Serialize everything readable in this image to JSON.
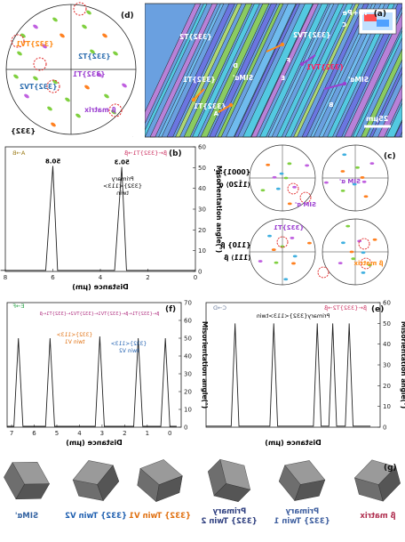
{
  "panel_labels": {
    "a": "(a)",
    "b": "(b)",
    "c": "(c)",
    "d": "(d)",
    "e": "(e)",
    "f": "(f)",
    "g": "(g)"
  },
  "map_a": {
    "title": "IQ+Pe",
    "labels": [
      "{332}TV2",
      "{332}TV1",
      "{332}T2",
      "{332}T1",
      "SIMα'",
      "SIMα'",
      "{332}T1",
      "C",
      "D",
      "E",
      "F",
      "A",
      "B"
    ],
    "scale_label": "25μm"
  },
  "pf_d": {
    "label": "{332}",
    "annotations": [
      "{332}TV1",
      "{332}T2",
      "{332}T1",
      "{332}TV2",
      "β matrix"
    ]
  },
  "pf_c": {
    "left_top_label": "{0001} α'",
    "left_bottom_label": "⟨11̄20⟩ α'",
    "right_top_label": "{110} β",
    "right_bottom_label": "⟨111⟩ β",
    "annotations": [
      "SIM α'",
      "SIM α'",
      "{332}T1",
      "β matrix"
    ]
  },
  "profile_b": {
    "series_label": "A→B",
    "legend": "β←{332}T1→β",
    "peak_values": [
      "50.8",
      "50.3"
    ],
    "annotation": [
      "Primary",
      "{332}<113>",
      "twin"
    ]
  },
  "profile_e": {
    "series_label": "C→D",
    "legend": "β←{332}T2→β",
    "annotation": "Primary{332}<113>twin"
  },
  "profile_f": {
    "series_label": "E→F",
    "legend": "β←{332}T1←β←{332}TV1←{332}TV2←{332}T1←β",
    "annotation_v1": [
      "{332}<113>",
      "twin V1"
    ],
    "annotation_v2": [
      "{332}<113>",
      "twin V2"
    ]
  },
  "axes": {
    "ylabel": "Misorientation angle(°)",
    "xlabel": "Distance (μm)"
  },
  "cubes": {
    "labels": [
      "β matrix",
      "Primary\n{332} Twin 1",
      "Primary\n{332} Twin 2",
      "{332} Twin V1",
      "{332} Twin V2",
      "SIMα'"
    ]
  },
  "colors": {
    "profile_line": "#222222",
    "map_green": "#8fd24a",
    "map_cyan": "#4fd0e0",
    "map_blue": "#6b6fe0",
    "map_magenta": "#c67bd6",
    "annot_orange": "#ff8c1a",
    "annot_purple": "#9b3fd0",
    "annot_blue": "#2f6fb0",
    "circle_red": "#e02020"
  },
  "chart_data": [
    {
      "type": "line",
      "panel": "b",
      "xlabel": "Distance (μm)",
      "ylabel": "Misorientation angle(°)",
      "xlim": [
        8,
        0
      ],
      "ylim": [
        0,
        60
      ],
      "x": [
        8.2,
        6.3,
        6.0,
        5.8,
        3.4,
        3.1,
        2.9,
        0
      ],
      "values": [
        0.5,
        0.5,
        50.8,
        0.5,
        0.5,
        50.3,
        0.5,
        0.5
      ]
    },
    {
      "type": "line",
      "panel": "e",
      "xlabel": "Distance (μm)",
      "ylabel": "Misorientation angle(°)",
      "xlim": [
        17,
        -1
      ],
      "ylim": [
        0,
        60
      ],
      "x": [
        17,
        14.4,
        14,
        13.6,
        10.4,
        10,
        9.6,
        5.9,
        5.5,
        5.1,
        4.3,
        3.9,
        3.5,
        2.6,
        2.2,
        1.8,
        0
      ],
      "values": [
        0.5,
        0.5,
        50,
        0.5,
        0.5,
        50,
        0.5,
        0.5,
        50,
        0.5,
        0.5,
        50,
        0.5,
        0.5,
        50,
        0.5,
        0.5
      ]
    },
    {
      "type": "line",
      "panel": "f",
      "xlabel": "Distance (μm)",
      "ylabel": "Misorientation angle(°)",
      "xlim": [
        7.2,
        -0.5
      ],
      "ylim": [
        0,
        70
      ],
      "x": [
        7.2,
        6.9,
        6.7,
        6.5,
        5.5,
        5.3,
        5.1,
        3.3,
        3.1,
        2.9,
        1.6,
        1.4,
        1.2,
        0.4,
        0.2,
        0.0,
        -0.3
      ],
      "values": [
        0.5,
        0.5,
        50,
        0.5,
        0.5,
        50,
        0.5,
        0.5,
        51,
        0.5,
        0.5,
        50,
        0.5,
        0.5,
        50,
        0.5,
        0.5
      ]
    }
  ]
}
